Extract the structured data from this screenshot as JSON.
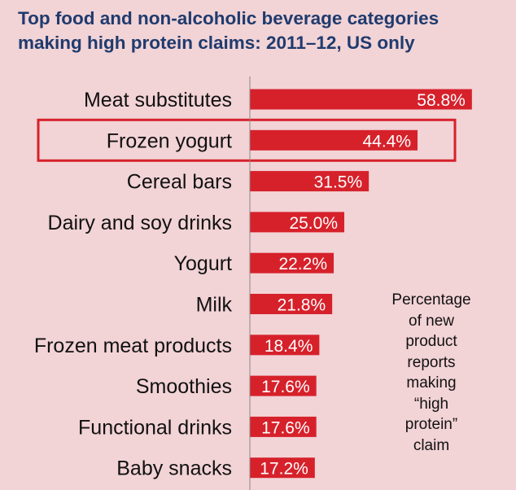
{
  "chart_data": {
    "type": "bar",
    "orientation": "horizontal",
    "title": [
      "Top food and non-alcoholic beverage categories",
      "making high protein claims: 2011–12, US only"
    ],
    "categories": [
      "Meat substitutes",
      "Frozen yogurt",
      "Cereal bars",
      "Dairy and soy drinks",
      "Yogurt",
      "Milk",
      "Frozen meat products",
      "Smoothies",
      "Functional drinks",
      "Baby snacks"
    ],
    "values": [
      58.8,
      44.4,
      31.5,
      25.0,
      22.2,
      21.8,
      18.4,
      17.6,
      17.6,
      17.2
    ],
    "value_labels": [
      "58.8%",
      "44.4%",
      "31.5%",
      "25.0%",
      "22.2%",
      "21.8%",
      "18.4%",
      "17.6%",
      "17.6%",
      "17.2%"
    ],
    "highlighted_category": "Frozen yogurt",
    "annotation": [
      "Percentage",
      "of new",
      "product",
      "reports",
      "making",
      "“high",
      "protein”",
      "claim"
    ],
    "bar_color": "#d6212b",
    "highlight_box_color": "#d6212b",
    "title_color": "#1f3b6e",
    "background_color": "#f2d3d6",
    "grid": false
  }
}
